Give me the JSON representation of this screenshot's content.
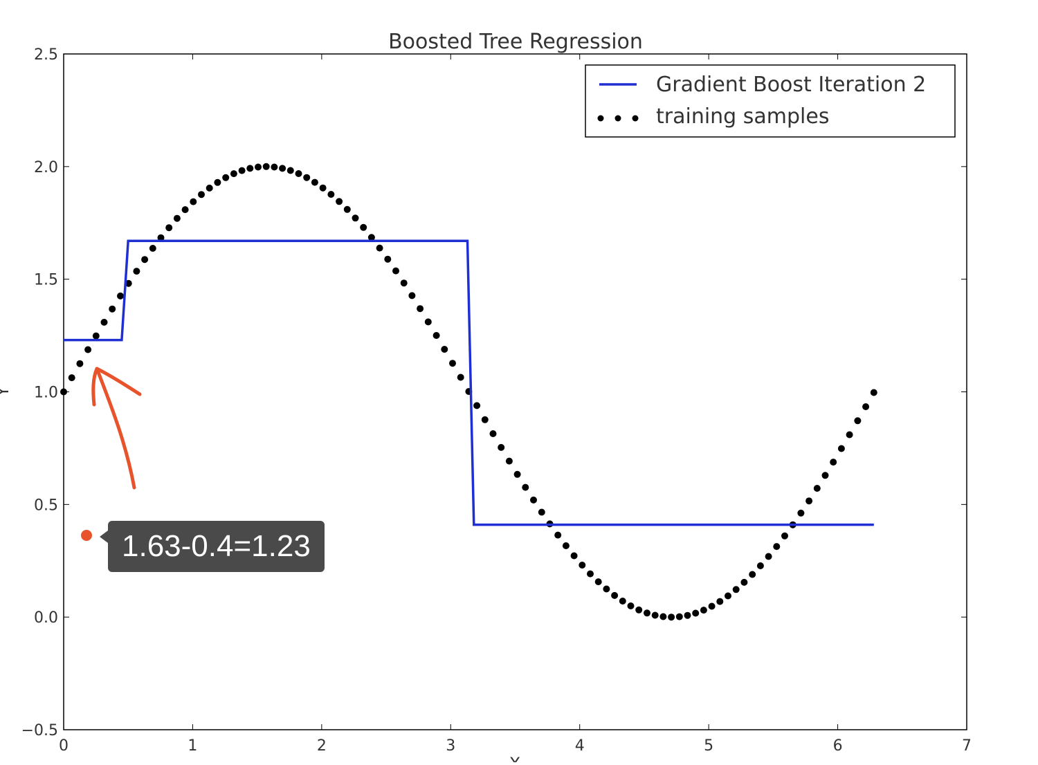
{
  "chart_data": {
    "type": "line",
    "title": "Boosted Tree Regression",
    "xlabel": "X",
    "ylabel": "Y",
    "xlim": [
      0,
      7
    ],
    "ylim": [
      -0.5,
      2.5
    ],
    "xticks": [
      0,
      1,
      2,
      3,
      4,
      5,
      6,
      7
    ],
    "yticks": [
      -0.5,
      0.0,
      0.5,
      1.0,
      1.5,
      2.0,
      2.5
    ],
    "xtick_labels": [
      "0",
      "1",
      "2",
      "3",
      "4",
      "5",
      "6",
      "7"
    ],
    "ytick_labels": [
      "−0.5",
      "0.0",
      "0.5",
      "1.0",
      "1.5",
      "2.0",
      "2.5"
    ],
    "grid": false,
    "legend_position": "top-right",
    "series": [
      {
        "name": "Gradient Boost Iteration 2",
        "style": "line",
        "color": "#1f2fd1",
        "x": [
          0,
          0.45,
          0.5,
          3.13,
          3.18,
          6.28
        ],
        "y": [
          1.23,
          1.23,
          1.67,
          1.67,
          0.41,
          0.41
        ]
      },
      {
        "name": "training samples",
        "style": "dots",
        "color": "#000000",
        "function": "sin(x)+1",
        "x_range": [
          0,
          6.28
        ],
        "count": 101
      }
    ]
  },
  "annotation": {
    "text": "1.63-0.4=1.23",
    "color": "#e8532b",
    "tooltip_bg": "#4a4a4a"
  }
}
